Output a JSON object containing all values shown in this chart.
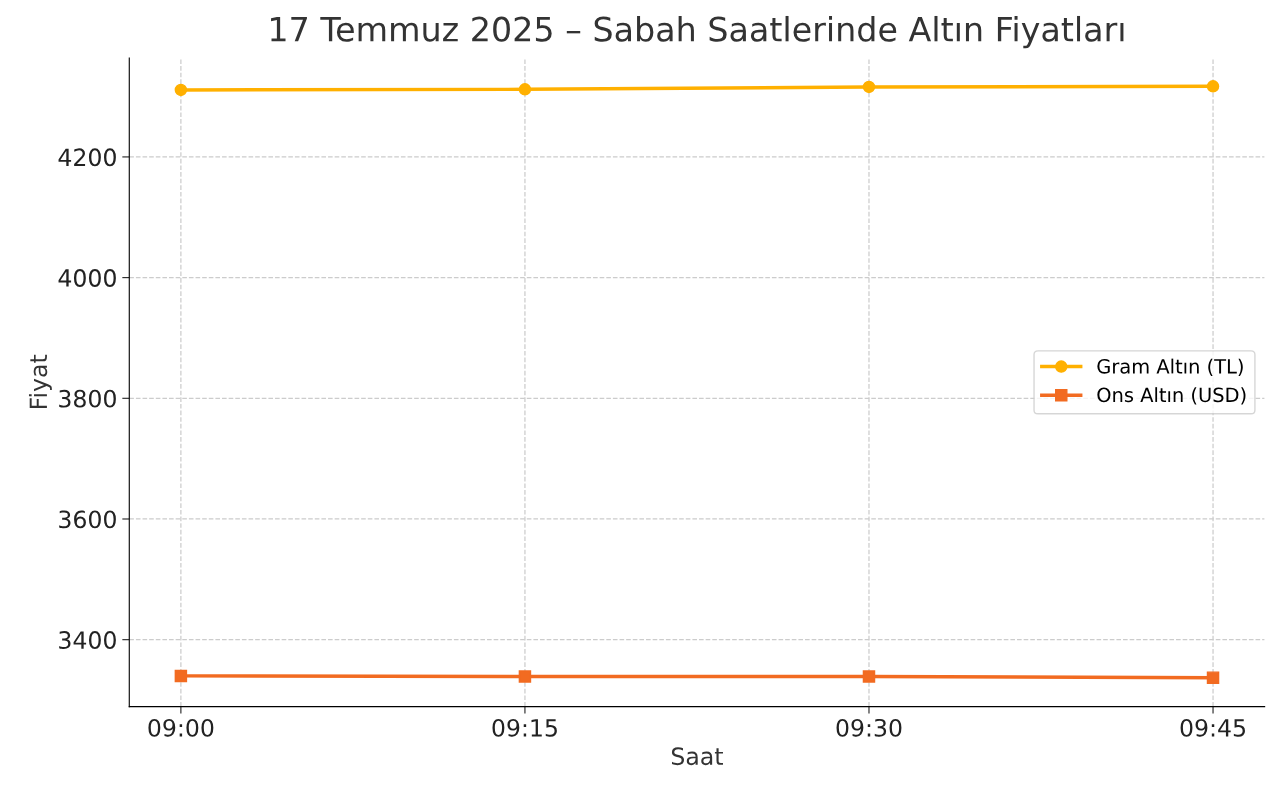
{
  "chart_data": {
    "type": "line",
    "title": "17 Temmuz 2025 – Sabah Saatlerinde Altın Fiyatları",
    "xlabel": "Saat",
    "ylabel": "Fiyat",
    "categories": [
      "09:00",
      "09:15",
      "09:30",
      "09:45"
    ],
    "series": [
      {
        "name": "Gram Altın (TL)",
        "color": "#ffb000",
        "marker": "circle",
        "values": [
          4311,
          4312,
          4316,
          4317
        ]
      },
      {
        "name": "Ons Altın (USD)",
        "color": "#f26b21",
        "marker": "square",
        "values": [
          3340,
          3339,
          3339,
          3337
        ]
      }
    ],
    "ylim": [
      3289,
      4364
    ],
    "yticks": [
      3400,
      3600,
      3800,
      4000,
      4200
    ],
    "grid": true,
    "legend": "right",
    "line_style": "solid"
  }
}
